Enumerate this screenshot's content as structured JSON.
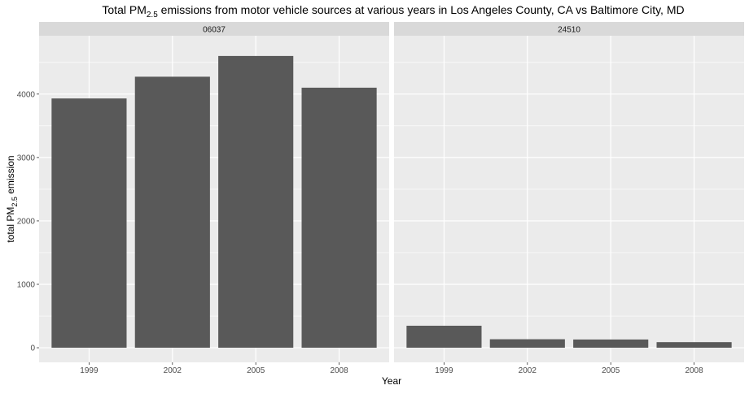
{
  "chart_data": {
    "type": "bar",
    "title": {
      "prefix": "Total PM",
      "sub": "2.5",
      "suffix": " emissions from motor vehicle sources at various years in Los Angeles County, CA vs Baltimore City, MD"
    },
    "xlabel": "Year",
    "ylabel": {
      "prefix": "total PM",
      "sub": "2.5",
      "suffix": " emission"
    },
    "categories": [
      "1999",
      "2002",
      "2005",
      "2008"
    ],
    "ylim": [
      -230,
      4920
    ],
    "yticks": [
      0,
      1000,
      2000,
      3000,
      4000
    ],
    "yminor": [
      500,
      1500,
      2500,
      3500,
      4500
    ],
    "grid": true,
    "facets": [
      {
        "label": "06037",
        "values": [
          3931,
          4274,
          4601,
          4101
        ]
      },
      {
        "label": "24510",
        "values": [
          347,
          134,
          130,
          88
        ]
      }
    ],
    "colors": {
      "bar": "#595959",
      "panel": "#ebebeb",
      "strip": "#d9d9d9",
      "grid": "#ffffff",
      "text": "#4d4d4d",
      "title": "#000000"
    }
  }
}
